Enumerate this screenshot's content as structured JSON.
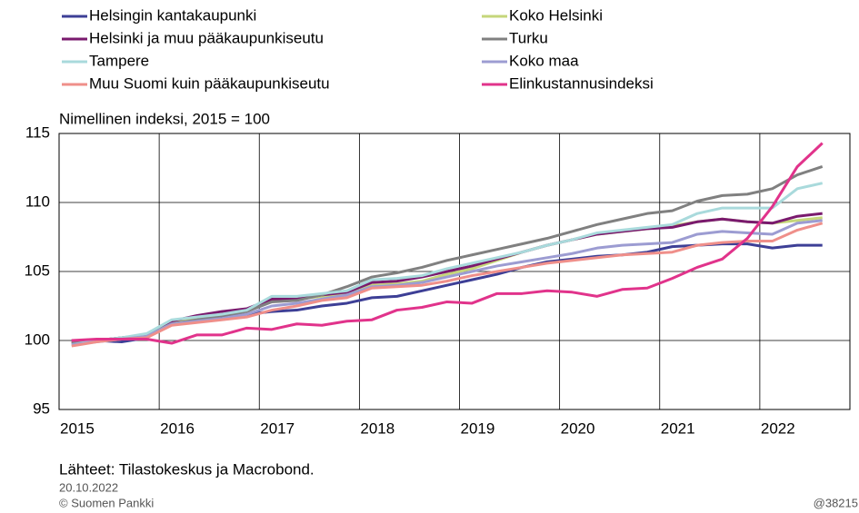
{
  "chart_data": {
    "type": "line",
    "ylabel": "Nimellinen indeksi, 2015 = 100",
    "x": [
      2015.125,
      2015.375,
      2015.625,
      2015.875,
      2016.125,
      2016.375,
      2016.625,
      2016.875,
      2017.125,
      2017.375,
      2017.625,
      2017.875,
      2018.125,
      2018.375,
      2018.625,
      2018.875,
      2019.125,
      2019.375,
      2019.625,
      2019.875,
      2020.125,
      2020.375,
      2020.625,
      2020.875,
      2021.125,
      2021.375,
      2021.625,
      2021.875,
      2022.125,
      2022.375,
      2022.625
    ],
    "series": [
      {
        "name": "Helsingin kantakaupunki",
        "color": "#3d3f96",
        "values": [
          100.0,
          100.0,
          99.9,
          100.2,
          101.3,
          101.5,
          101.7,
          101.9,
          102.1,
          102.2,
          102.5,
          102.7,
          103.1,
          103.2,
          103.6,
          104.0,
          104.4,
          104.8,
          105.3,
          105.7,
          105.9,
          106.1,
          106.2,
          106.4,
          106.8,
          106.9,
          107.0,
          107.0,
          106.7,
          106.9,
          106.9
        ]
      },
      {
        "name": "Koko Helsinki",
        "color": "#c5d67a",
        "values": [
          99.8,
          100.0,
          100.2,
          100.4,
          101.3,
          101.6,
          101.9,
          102.1,
          102.9,
          103.0,
          103.2,
          103.4,
          104.0,
          104.1,
          104.3,
          104.8,
          105.2,
          105.8,
          106.4,
          106.9,
          107.3,
          107.7,
          107.9,
          108.1,
          108.3,
          108.6,
          108.8,
          108.6,
          108.5,
          108.7,
          108.9
        ]
      },
      {
        "name": "Helsinki ja muu pääkaupunkiseutu",
        "color": "#7a1a6e",
        "values": [
          99.8,
          100.0,
          100.2,
          100.4,
          101.4,
          101.8,
          102.1,
          102.3,
          103.0,
          103.0,
          103.3,
          103.5,
          104.2,
          104.3,
          104.6,
          105.0,
          105.4,
          105.9,
          106.4,
          106.9,
          107.3,
          107.7,
          107.9,
          108.1,
          108.2,
          108.6,
          108.8,
          108.6,
          108.5,
          109.0,
          109.2
        ]
      },
      {
        "name": "Turku",
        "color": "#808080",
        "values": [
          99.8,
          100.0,
          100.2,
          100.4,
          101.2,
          101.5,
          101.8,
          102.1,
          102.8,
          102.9,
          103.3,
          103.9,
          104.6,
          104.9,
          105.3,
          105.8,
          106.2,
          106.6,
          107.0,
          107.4,
          107.9,
          108.4,
          108.8,
          109.2,
          109.4,
          110.1,
          110.5,
          110.6,
          111.0,
          112.0,
          112.6
        ]
      },
      {
        "name": "Tampere",
        "color": "#a9dadc",
        "values": [
          99.7,
          100.0,
          100.2,
          100.5,
          101.5,
          101.7,
          101.9,
          102.2,
          103.2,
          103.2,
          103.4,
          103.6,
          104.4,
          104.5,
          104.7,
          105.2,
          105.6,
          106.0,
          106.4,
          106.9,
          107.3,
          107.8,
          108.0,
          108.2,
          108.4,
          109.2,
          109.6,
          109.6,
          109.6,
          111.0,
          111.4
        ]
      },
      {
        "name": "Koko maa",
        "color": "#9c9cd2",
        "values": [
          99.7,
          99.9,
          100.1,
          100.3,
          101.2,
          101.4,
          101.6,
          101.9,
          102.5,
          102.7,
          103.0,
          103.3,
          103.9,
          104.0,
          104.2,
          104.6,
          105.0,
          105.4,
          105.7,
          106.0,
          106.3,
          106.7,
          106.9,
          107.0,
          107.1,
          107.7,
          107.9,
          107.8,
          107.7,
          108.5,
          108.7
        ]
      },
      {
        "name": "Muu Suomi kuin pääkaupunkiseutu",
        "color": "#ef8f8a",
        "values": [
          99.6,
          99.9,
          100.1,
          100.2,
          101.1,
          101.3,
          101.5,
          101.7,
          102.2,
          102.5,
          102.9,
          103.1,
          103.8,
          103.9,
          104.0,
          104.3,
          104.7,
          105.0,
          105.3,
          105.6,
          105.8,
          106.0,
          106.2,
          106.3,
          106.4,
          106.9,
          107.1,
          107.2,
          107.2,
          108.0,
          108.5
        ]
      },
      {
        "name": "Elinkustannusindeksi",
        "color": "#e1338b",
        "values": [
          100.0,
          100.1,
          100.1,
          100.1,
          99.8,
          100.4,
          100.4,
          100.9,
          100.8,
          101.2,
          101.1,
          101.4,
          101.5,
          102.2,
          102.4,
          102.8,
          102.7,
          103.4,
          103.4,
          103.6,
          103.5,
          103.2,
          103.7,
          103.8,
          104.5,
          105.3,
          105.9,
          107.4,
          109.7,
          112.6,
          114.3
        ]
      }
    ],
    "xlim": [
      2015,
      2022.9
    ],
    "xticks": [
      2015,
      2016,
      2017,
      2018,
      2019,
      2020,
      2021,
      2022
    ],
    "ylim": [
      95,
      115
    ],
    "yticks": [
      95,
      100,
      105,
      110,
      115
    ],
    "grid": true,
    "legend": "top",
    "source": "Lähteet: Tilastokeskus ja Macrobond.",
    "date": "20.10.2022",
    "credit": "© Suomen Pankki",
    "code": "@38215"
  }
}
